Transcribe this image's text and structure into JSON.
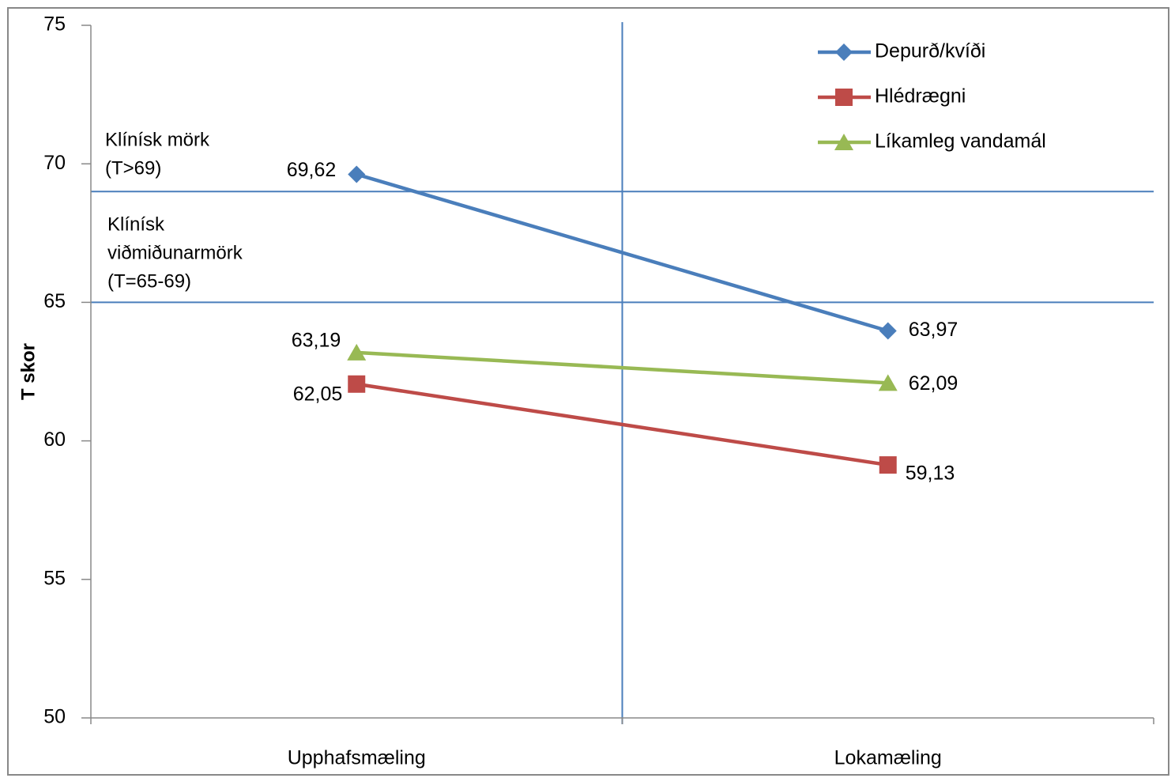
{
  "chart_data": {
    "type": "line",
    "y_label": "T skor",
    "categories": [
      "Upphafsmæling",
      "Lokamæling"
    ],
    "series": [
      {
        "name": "Depurð/kvíði",
        "color": "#4a7ebb",
        "marker": "diamond",
        "values": [
          69.62,
          63.97
        ],
        "value_labels": [
          "69,62",
          "63,97"
        ]
      },
      {
        "name": "Hlédrægni",
        "color": "#be4b48",
        "marker": "square",
        "values": [
          62.05,
          59.13
        ],
        "value_labels": [
          "62,05",
          "59,13"
        ]
      },
      {
        "name": "Líkamleg vandamál",
        "color": "#98b954",
        "marker": "triangle",
        "values": [
          63.19,
          62.09
        ],
        "value_labels": [
          "63,19",
          "62,09"
        ]
      }
    ],
    "ylim": [
      50,
      75
    ],
    "yticks": [
      50,
      55,
      60,
      65,
      70,
      75
    ],
    "reference_lines": [
      69,
      65
    ],
    "reference_color": "#4a7ebb",
    "annotations": [
      [
        "Klínísk mörk",
        "(T>69)"
      ],
      [
        "Klínísk",
        "viðmiðunarmörk",
        "(T=65-69)"
      ]
    ],
    "legend": "top-right"
  }
}
